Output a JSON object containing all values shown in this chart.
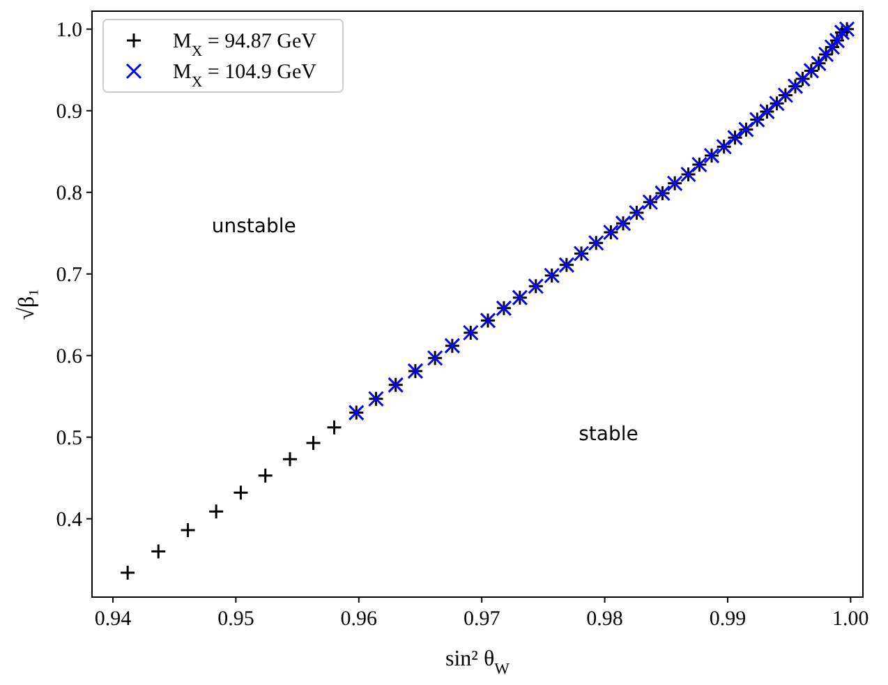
{
  "chart_data": {
    "type": "scatter",
    "xlabel": "sin² θ$_{W}$",
    "ylabel": "√β₁",
    "xlim": [
      0.9383,
      1.001
    ],
    "ylim": [
      0.304,
      1.022
    ],
    "xticks": [
      {
        "value": 0.94,
        "label": "0.94"
      },
      {
        "value": 0.95,
        "label": "0.95"
      },
      {
        "value": 0.96,
        "label": "0.96"
      },
      {
        "value": 0.97,
        "label": "0.97"
      },
      {
        "value": 0.98,
        "label": "0.98"
      },
      {
        "value": 0.99,
        "label": "0.99"
      },
      {
        "value": 1.0,
        "label": "1.00"
      }
    ],
    "yticks": [
      {
        "value": 0.4,
        "label": "0.4"
      },
      {
        "value": 0.5,
        "label": "0.5"
      },
      {
        "value": 0.6,
        "label": "0.6"
      },
      {
        "value": 0.7,
        "label": "0.7"
      },
      {
        "value": 0.8,
        "label": "0.8"
      },
      {
        "value": 0.9,
        "label": "0.9"
      },
      {
        "value": 1.0,
        "label": "1.0"
      }
    ],
    "grid": false,
    "legend": "top left",
    "annotations": [
      "unstable",
      "stable"
    ],
    "series": [
      {
        "name": "M$_{X}$ = 94.87 GeV",
        "color": "#000000",
        "marker": "plus",
        "x": [
          0.9412,
          0.9437,
          0.9461,
          0.9484,
          0.9504,
          0.9524,
          0.9544,
          0.9563,
          0.958,
          0.9598,
          0.9614,
          0.963,
          0.9646,
          0.9662,
          0.9676,
          0.9691,
          0.9705,
          0.9718,
          0.9731,
          0.9744,
          0.9757,
          0.9769,
          0.9781,
          0.9793,
          0.9805,
          0.9815,
          0.9826,
          0.9837,
          0.9847,
          0.9857,
          0.9868,
          0.9877,
          0.9887,
          0.9897,
          0.9906,
          0.9915,
          0.9924,
          0.9932,
          0.994,
          0.9947,
          0.9955,
          0.9961,
          0.9968,
          0.9974,
          0.998,
          0.9985,
          0.9989,
          0.9993,
          0.9997
        ],
        "values": [
          0.334,
          0.36,
          0.386,
          0.409,
          0.432,
          0.453,
          0.473,
          0.493,
          0.512,
          0.53,
          0.547,
          0.564,
          0.581,
          0.597,
          0.612,
          0.628,
          0.643,
          0.658,
          0.671,
          0.685,
          0.698,
          0.711,
          0.725,
          0.738,
          0.751,
          0.762,
          0.775,
          0.788,
          0.799,
          0.811,
          0.822,
          0.834,
          0.845,
          0.856,
          0.867,
          0.877,
          0.889,
          0.899,
          0.909,
          0.919,
          0.93,
          0.939,
          0.949,
          0.958,
          0.969,
          0.978,
          0.986,
          0.996,
          1.0
        ]
      },
      {
        "name": "M$_{X}$ = 104.9 GeV",
        "color": "#0000ff",
        "marker": "cross",
        "x": [
          0.9598,
          0.9614,
          0.963,
          0.9646,
          0.9662,
          0.9676,
          0.9691,
          0.9705,
          0.9718,
          0.9731,
          0.9744,
          0.9757,
          0.9769,
          0.9781,
          0.9793,
          0.9805,
          0.9815,
          0.9826,
          0.9837,
          0.9847,
          0.9857,
          0.9868,
          0.9877,
          0.9887,
          0.9897,
          0.9906,
          0.9915,
          0.9924,
          0.9932,
          0.994,
          0.9947,
          0.9955,
          0.9961,
          0.9968,
          0.9974,
          0.998,
          0.9985,
          0.9989,
          0.9993,
          0.9997
        ],
        "values": [
          0.53,
          0.547,
          0.564,
          0.581,
          0.597,
          0.612,
          0.628,
          0.643,
          0.658,
          0.671,
          0.685,
          0.698,
          0.711,
          0.725,
          0.738,
          0.751,
          0.762,
          0.775,
          0.788,
          0.799,
          0.811,
          0.822,
          0.834,
          0.845,
          0.856,
          0.867,
          0.877,
          0.889,
          0.899,
          0.909,
          0.919,
          0.93,
          0.939,
          0.949,
          0.958,
          0.969,
          0.978,
          0.986,
          0.996,
          1.0
        ]
      }
    ]
  }
}
